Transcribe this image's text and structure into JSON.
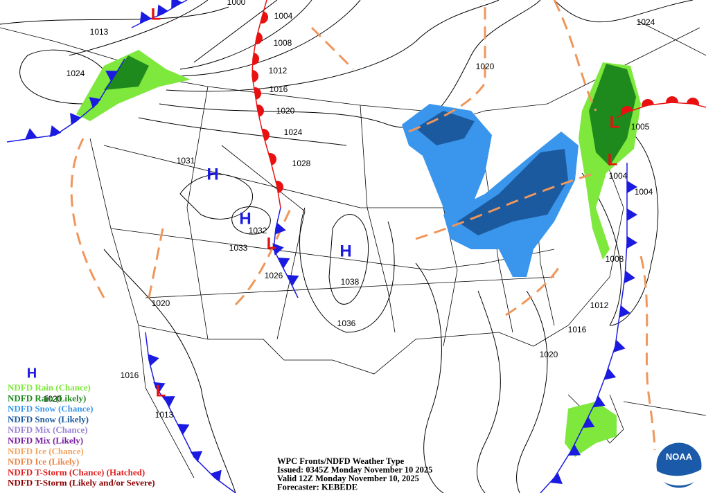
{
  "pressure_labels": [
    "1000",
    "1004",
    "1008",
    "1012",
    "1016",
    "1020",
    "1024",
    "1028",
    "1013",
    "1024",
    "1031",
    "1032",
    "1033",
    "1026",
    "1038",
    "1036",
    "1020",
    "1024",
    "1005",
    "1004",
    "1004",
    "1008",
    "1012",
    "1016",
    "1020",
    "1020",
    "1016",
    "1020",
    "1013"
  ],
  "pressure_centers": [
    "H",
    "H",
    "H",
    "L",
    "L",
    "L",
    "L",
    "L"
  ],
  "legend": {
    "symbol": "H",
    "items": [
      {
        "label": "NDFD Rain (Chance)",
        "color": "#7ee83c"
      },
      {
        "label": "NDFD Rain (Likely)",
        "color": "#1e8a1e"
      },
      {
        "label": "NDFD Snow (Chance)",
        "color": "#3a96ec"
      },
      {
        "label": "NDFD Snow (Likely)",
        "color": "#1c5aa0"
      },
      {
        "label": "NDFD Mix (Chance)",
        "color": "#9a82d2"
      },
      {
        "label": "NDFD Mix (Likely)",
        "color": "#7a1ea0"
      },
      {
        "label": "NDFD Ice (Chance)",
        "color": "#f4a460"
      },
      {
        "label": "NDFD Ice (Likely)",
        "color": "#e8884a"
      },
      {
        "label": "NDFD T-Storm (Chance) (Hatched)",
        "color": "#e02020"
      },
      {
        "label": "NDFD T-Storm (Likely and/or Severe)",
        "color": "#8b0000"
      }
    ]
  },
  "info": [
    "WPC Fronts/NDFD Weather Type",
    "Issued: 0345Z Monday November 10 2025",
    "Valid 12Z Monday November 10, 2025",
    "Forecaster: KEBEDE"
  ],
  "logo": "NOAA"
}
